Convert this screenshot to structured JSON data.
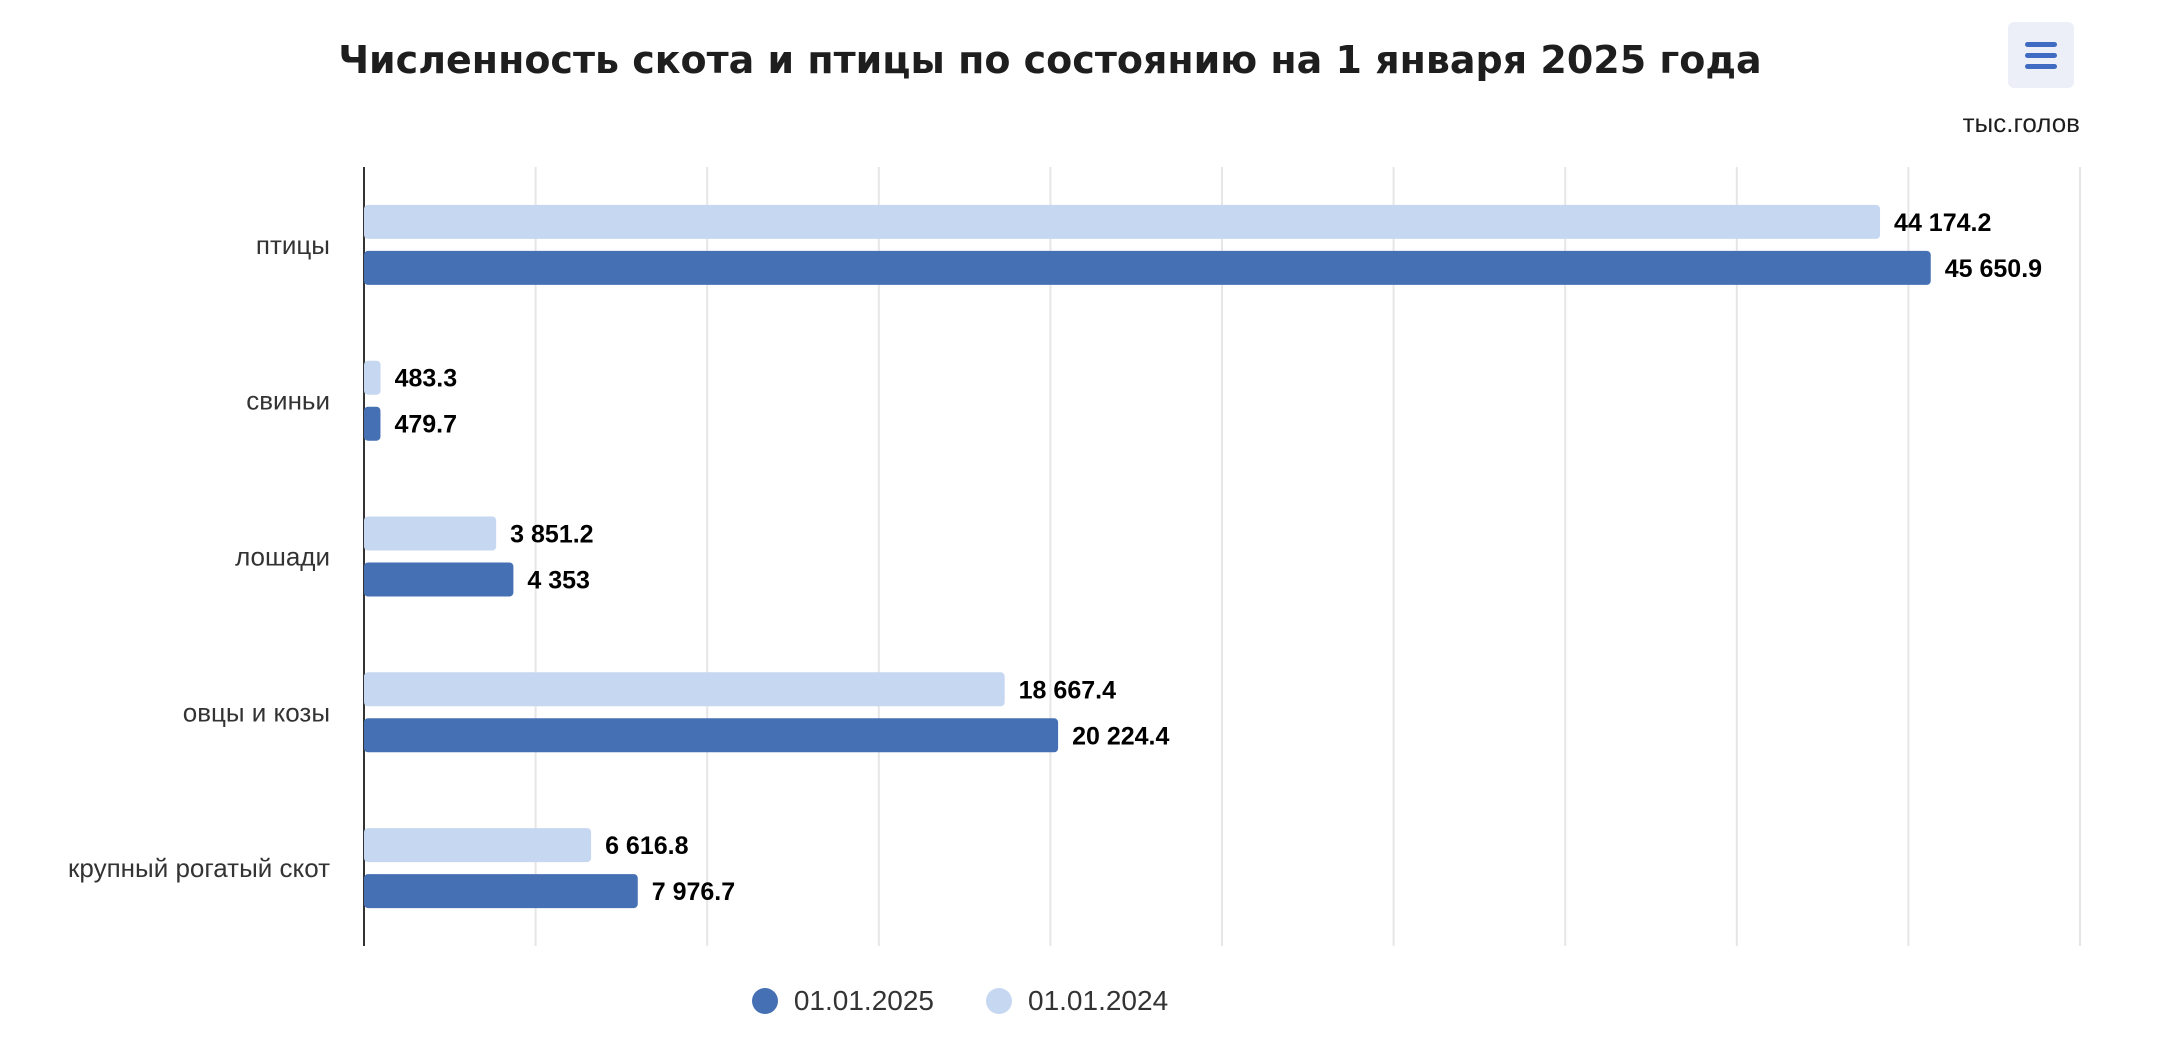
{
  "chart_data": {
    "type": "bar",
    "orientation": "horizontal",
    "title": "Численность скота и птицы по состоянию на 1 января 2025 года",
    "unit": "тыс.голов",
    "categories": [
      "птицы",
      "свиньи",
      "лошади",
      "овцы и козы",
      "крупный рогатый скот"
    ],
    "series": [
      {
        "name": "01.01.2024",
        "color": "#c6d7f1",
        "values": [
          44174.2,
          483.3,
          3851.2,
          18667.4,
          6616.8
        ],
        "labels": [
          "44 174.2",
          "483.3",
          "3 851.2",
          "18 667.4",
          "6 616.8"
        ]
      },
      {
        "name": "01.01.2025",
        "color": "#4670b4",
        "values": [
          45650.9,
          479.7,
          4353,
          20224.4,
          7976.7
        ],
        "labels": [
          "45 650.9",
          "479.7",
          "4 353",
          "20 224.4",
          "7 976.7"
        ]
      }
    ],
    "xlim": [
      0,
      50000
    ],
    "grid": true,
    "legend_position": "bottom",
    "legend_order": [
      "01.01.2025",
      "01.01.2024"
    ]
  },
  "menu_icon": "hamburger-menu-icon",
  "grid_color": "#e6e6e6",
  "axis_color": "#333333"
}
